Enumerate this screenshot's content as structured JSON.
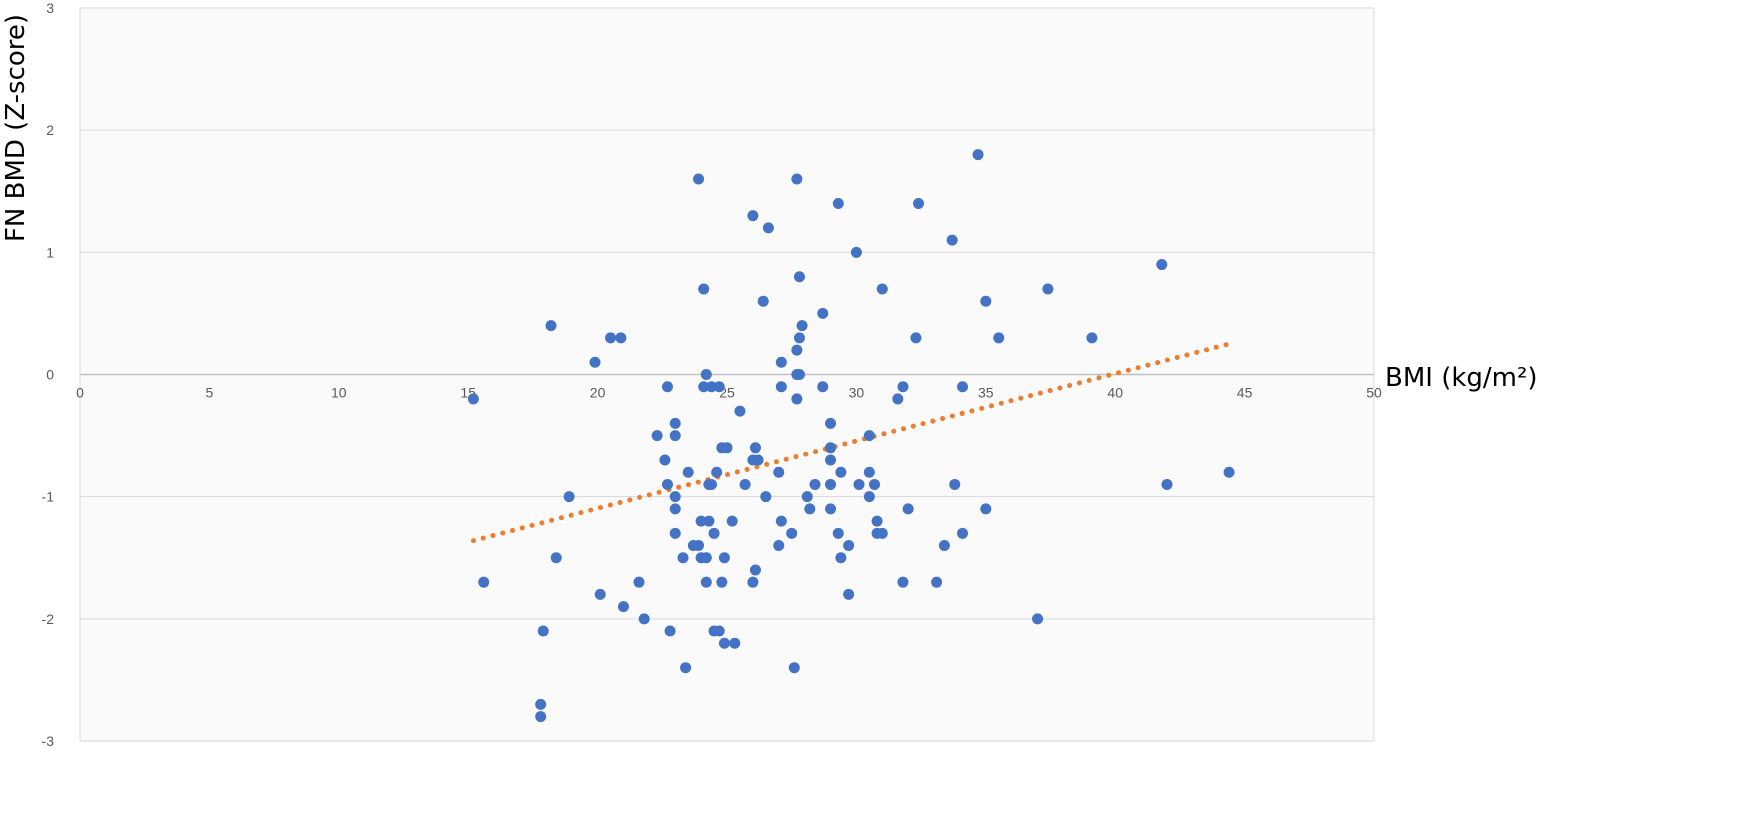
{
  "chart_data": {
    "type": "scatter",
    "xlabel": "BMI (kg/m²)",
    "ylabel": "FN BMD (Z-score)",
    "xlim": [
      0,
      50
    ],
    "ylim": [
      -3,
      3
    ],
    "x_ticks": [
      "0",
      "5",
      "10",
      "15",
      "20",
      "25",
      "30",
      "35",
      "40",
      "45",
      "50"
    ],
    "y_ticks": [
      "3",
      "2",
      "1",
      "0",
      "-1",
      "-2",
      "-3"
    ],
    "grid": true,
    "legend": "none",
    "colors": {
      "points": "#4472c4",
      "trendline": "#ed7d31",
      "plot_area": "#fafafa",
      "grid": "#d9d9d9"
    },
    "trendline": {
      "style": "dotted",
      "x": [
        15.2,
        44.4
      ],
      "y": [
        -1.36,
        0.25
      ]
    },
    "points": [
      [
        15.2,
        -0.2
      ],
      [
        15.6,
        -1.7
      ],
      [
        18.2,
        0.4
      ],
      [
        17.9,
        -2.1
      ],
      [
        17.8,
        -2.7
      ],
      [
        17.8,
        -2.8
      ],
      [
        18.4,
        -1.5
      ],
      [
        18.9,
        -1.0
      ],
      [
        19.9,
        0.1
      ],
      [
        20.1,
        -1.8
      ],
      [
        20.5,
        0.3
      ],
      [
        20.9,
        0.3
      ],
      [
        21.0,
        -1.9
      ],
      [
        21.6,
        -1.7
      ],
      [
        21.8,
        -2.0
      ],
      [
        22.3,
        -0.5
      ],
      [
        22.6,
        -0.7
      ],
      [
        22.7,
        -0.9
      ],
      [
        22.7,
        -0.1
      ],
      [
        22.8,
        -2.1
      ],
      [
        23.0,
        -0.4
      ],
      [
        23.0,
        -0.5
      ],
      [
        23.0,
        -1.0
      ],
      [
        23.0,
        -1.1
      ],
      [
        23.0,
        -1.3
      ],
      [
        23.3,
        -1.5
      ],
      [
        23.4,
        -2.4
      ],
      [
        23.5,
        -0.8
      ],
      [
        23.7,
        -1.4
      ],
      [
        23.9,
        -1.4
      ],
      [
        23.9,
        1.6
      ],
      [
        24.0,
        -1.2
      ],
      [
        24.0,
        -1.5
      ],
      [
        24.1,
        0.7
      ],
      [
        24.1,
        -0.1
      ],
      [
        24.2,
        -1.5
      ],
      [
        24.2,
        -1.7
      ],
      [
        24.2,
        0.0
      ],
      [
        24.3,
        -0.9
      ],
      [
        24.3,
        -1.2
      ],
      [
        24.4,
        -0.1
      ],
      [
        24.4,
        -0.9
      ],
      [
        24.5,
        -1.3
      ],
      [
        24.5,
        -2.1
      ],
      [
        24.6,
        -0.8
      ],
      [
        24.7,
        -2.1
      ],
      [
        24.7,
        -0.1
      ],
      [
        24.8,
        -0.6
      ],
      [
        24.8,
        -1.7
      ],
      [
        24.9,
        -1.5
      ],
      [
        24.9,
        -2.2
      ],
      [
        25.0,
        -0.6
      ],
      [
        25.2,
        -1.2
      ],
      [
        25.3,
        -2.2
      ],
      [
        25.5,
        -0.3
      ],
      [
        25.7,
        -0.9
      ],
      [
        26.0,
        -0.7
      ],
      [
        26.0,
        -1.7
      ],
      [
        26.0,
        1.3
      ],
      [
        26.1,
        -0.6
      ],
      [
        26.1,
        -1.6
      ],
      [
        26.2,
        -0.7
      ],
      [
        26.4,
        0.6
      ],
      [
        26.5,
        -1.0
      ],
      [
        26.6,
        1.2
      ],
      [
        27.0,
        -1.4
      ],
      [
        27.0,
        -0.8
      ],
      [
        27.1,
        0.1
      ],
      [
        27.1,
        -0.1
      ],
      [
        27.1,
        -1.2
      ],
      [
        27.5,
        -1.3
      ],
      [
        27.6,
        -2.4
      ],
      [
        27.7,
        1.6
      ],
      [
        27.7,
        0.2
      ],
      [
        27.7,
        0.0
      ],
      [
        27.7,
        -0.2
      ],
      [
        27.8,
        0.8
      ],
      [
        27.8,
        0.3
      ],
      [
        27.8,
        0.0
      ],
      [
        27.9,
        0.4
      ],
      [
        28.1,
        -1.0
      ],
      [
        28.2,
        -1.1
      ],
      [
        28.4,
        -0.9
      ],
      [
        28.7,
        0.5
      ],
      [
        28.7,
        -0.1
      ],
      [
        29.0,
        -0.4
      ],
      [
        29.0,
        -0.6
      ],
      [
        29.0,
        -0.7
      ],
      [
        29.0,
        -0.9
      ],
      [
        29.0,
        -1.1
      ],
      [
        29.3,
        1.4
      ],
      [
        29.3,
        -1.3
      ],
      [
        29.4,
        -0.8
      ],
      [
        29.4,
        -1.5
      ],
      [
        29.7,
        -1.4
      ],
      [
        29.7,
        -1.8
      ],
      [
        30.0,
        1.0
      ],
      [
        30.1,
        -0.9
      ],
      [
        30.5,
        -0.5
      ],
      [
        30.5,
        -0.8
      ],
      [
        30.5,
        -1.0
      ],
      [
        30.7,
        -0.9
      ],
      [
        30.8,
        -1.2
      ],
      [
        30.8,
        -1.3
      ],
      [
        31.0,
        0.7
      ],
      [
        31.0,
        -1.3
      ],
      [
        31.6,
        -0.2
      ],
      [
        31.8,
        -0.1
      ],
      [
        31.8,
        -1.7
      ],
      [
        32.0,
        -1.1
      ],
      [
        32.3,
        0.3
      ],
      [
        32.4,
        1.4
      ],
      [
        33.1,
        -1.7
      ],
      [
        33.4,
        -1.4
      ],
      [
        33.7,
        1.1
      ],
      [
        33.8,
        -0.9
      ],
      [
        34.1,
        -0.1
      ],
      [
        34.1,
        -1.3
      ],
      [
        34.7,
        1.8
      ],
      [
        35.0,
        0.6
      ],
      [
        35.0,
        -1.1
      ],
      [
        35.5,
        0.3
      ],
      [
        37.0,
        -2.0
      ],
      [
        37.4,
        0.7
      ],
      [
        39.1,
        0.3
      ],
      [
        41.8,
        0.9
      ],
      [
        42.0,
        -0.9
      ],
      [
        44.4,
        -0.8
      ]
    ]
  }
}
